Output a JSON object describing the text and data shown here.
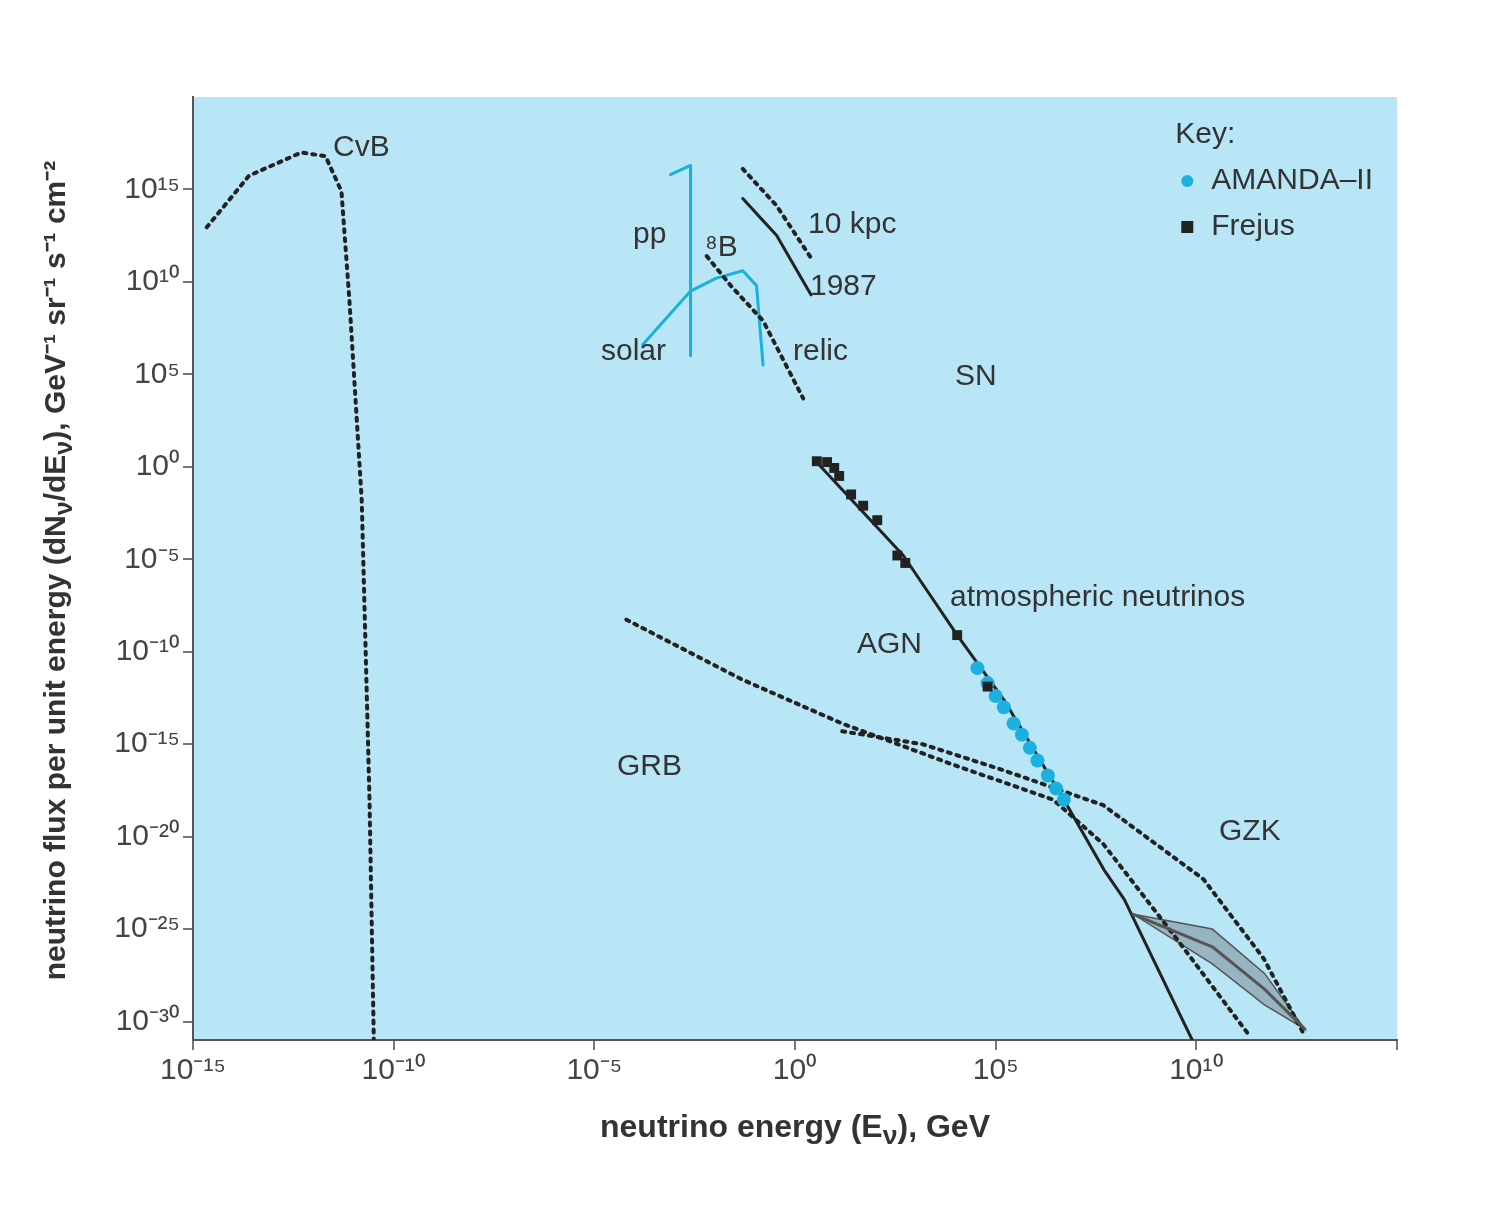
{
  "chart_data": {
    "type": "line",
    "xlabel": "neutrino energy (E$_{ν}$), GeV",
    "ylabel": "neutrino flux per unit energy (dN$_{ν}$/dE$_{ν}$), GeV⁻¹ sr⁻¹ s⁻¹ cm⁻²",
    "legend_title": "Key:",
    "legend": "top right",
    "log": "xy",
    "grid": false,
    "xlim": [
      1e-15,
      1000000000000000.0
    ],
    "ylim": [
      1e-31,
      1e+20
    ],
    "xticks": [
      {
        "value": 1e-15,
        "label": "10⁻¹⁵"
      },
      {
        "value": 1e-10,
        "label": "10⁻¹⁰"
      },
      {
        "value": 1e-05,
        "label": "10⁻⁵"
      },
      {
        "value": 1,
        "label": "10⁰"
      },
      {
        "value": 100000.0,
        "label": "10⁵"
      },
      {
        "value": 10000000000.0,
        "label": "10¹⁰"
      },
      {
        "value": 1000000000000000.0,
        "label": null
      }
    ],
    "yticks": [
      {
        "value": 1000000000000000.0,
        "label": "10¹⁵"
      },
      {
        "value": 10000000000.0,
        "label": "10¹⁰"
      },
      {
        "value": 100000.0,
        "label": "10⁵"
      },
      {
        "value": 1,
        "label": "10⁰"
      },
      {
        "value": 1e-05,
        "label": "10⁻⁵"
      },
      {
        "value": 1e-10,
        "label": "10⁻¹⁰"
      },
      {
        "value": 1e-15,
        "label": "10⁻¹⁵"
      },
      {
        "value": 1e-20,
        "label": "10⁻²⁰"
      },
      {
        "value": 1e-25,
        "label": "10⁻²⁵"
      },
      {
        "value": 1e-30,
        "label": "10⁻³⁰"
      }
    ],
    "series": [
      {
        "color": "#222222",
        "line_style": "dotted",
        "marker": "none",
        "x": [
          2.2e-15,
          2.5e-14,
          5e-13,
          2e-12,
          5e-12,
          7.9e-12,
          1.6e-11,
          2.5e-11,
          3.2e-11
        ],
        "values": [
          9000000000000.0,
          5600000000000000.0,
          1e+17,
          6.3e+16,
          790000000000000.0,
          1000000000.0,
          0.016,
          1e-18,
          1e-31
        ]
      },
      {
        "type": "line",
        "color": "#1ab0e0",
        "line_style": "solid",
        "marker": "none",
        "x": [
          0.00079,
          0.0025,
          0.0025
        ],
        "values": [
          6300000000000000.0,
          2e+16,
          1000000.0
        ]
      },
      {
        "type": "line",
        "color": "#1ab0e0",
        "line_style": "solid",
        "marker": "none",
        "x": [
          0.00016,
          0.0025,
          0.011,
          0.05,
          0.11,
          0.16
        ],
        "values": [
          4000000.0,
          3200000000.0,
          16000000000.0,
          40000000000.0,
          6300000000.0,
          320000.0
        ]
      },
      {
        "type": "line",
        "color": "#222222",
        "line_style": "dotted",
        "marker": "none",
        "x": [
          0.0063,
          0.025,
          0.16,
          1.6
        ],
        "values": [
          250000000000.0,
          6300000000.0,
          79000000.0,
          5000.0
        ]
      },
      {
        "type": "line",
        "color": "#222222",
        "line_style": "dotted",
        "marker": "none",
        "x": [
          0.05,
          0.35,
          2.5
        ],
        "values": [
          1.3e+16,
          130000000000000.0,
          200000000000.0
        ]
      },
      {
        "type": "line",
        "color": "#222222",
        "line_style": "solid",
        "marker": "none",
        "x": [
          0.05,
          0.35,
          2.5
        ],
        "values": [
          320000000000000.0,
          3200000000000.0,
          2000000000.0
        ]
      },
      {
        "type": "line",
        "color": "#222222",
        "line_style": "solid",
        "marker": "none",
        "x": [
          3,
          500,
          11000.0,
          160000.0,
          5000000.0,
          50000000.0,
          160000000.0,
          7900000000.0
        ],
        "values": [
          2.5,
          1.6e-05,
          7.9e-10,
          2.5e-13,
          1e-18,
          1.6e-22,
          4e-24,
          1e-31
        ]
      },
      {
        "type": "line",
        "color": "#222222",
        "line_style": "dotted",
        "marker": "none",
        "x": [
          6.3e-05,
          0.047,
          15,
          8500.0,
          2700000.0,
          48000000.0,
          2700000000.0,
          200000000000.0
        ],
        "values": [
          5.4e-09,
          3.2e-12,
          1.3e-14,
          7.9e-17,
          1e-18,
          4e-21,
          5e-26,
          2e-31
        ]
      },
      {
        "type": "line",
        "color": "#222222",
        "line_style": "dotted",
        "marker": "none",
        "x": [
          15,
          1500.0,
          150000.0,
          48000000.0,
          15000000000.0,
          480000000000.0,
          4800000000000.0
        ],
        "values": [
          5e-15,
          1e-15,
          4e-17,
          5e-19,
          5e-23,
          2.5e-27,
          2e-31
        ]
      },
      {
        "type": "line",
        "color": "#555555",
        "line_style": "solid",
        "marker": "none",
        "x": [
          270000000.0,
          25000000000.0,
          500000000000.0,
          5000000000000.0
        ],
        "values": [
          6.3e-25,
          1.1e-26,
          5.6e-29,
          4e-31
        ],
        "lower": [
          6.3e-25,
          1.3e-27,
          7.9e-30,
          4e-31
        ],
        "upper": [
          6.3e-25,
          1e-25,
          4e-28,
          4e-31
        ]
      },
      {
        "type": "scatter",
        "name": "AMANDA–II",
        "color": "#1ab0e0",
        "marker": "circle",
        "x": [
          35000.0,
          63000.0,
          100000.0,
          160000.0,
          280000.0,
          450000.0,
          710000.0,
          1100000.0,
          2000000.0,
          3200000.0,
          5000000.0
        ],
        "values": [
          1.3e-11,
          2e-12,
          4e-13,
          1e-13,
          1.3e-14,
          3.2e-15,
          6.3e-16,
          1.3e-16,
          2e-17,
          4e-18,
          1e-18
        ]
      },
      {
        "type": "scatter",
        "name": "Frejus",
        "color": "#222222",
        "marker": "square",
        "x": [
          3.5,
          6.3,
          9.5,
          12.6,
          25,
          50,
          112,
          355,
          560,
          11000.0,
          63000.0
        ],
        "values": [
          2,
          1.8,
          0.87,
          0.32,
          0.032,
          0.0079,
          0.0013,
          1.6e-05,
          6.3e-06,
          7.9e-10,
          1.3e-12
        ]
      }
    ],
    "annotations": [
      "CvB",
      "pp",
      "⁸B",
      "solar",
      "relic",
      "10 kpc",
      "1987",
      "SN",
      "atmospheric neutrinos",
      "AGN",
      "GRB",
      "GZK"
    ]
  }
}
